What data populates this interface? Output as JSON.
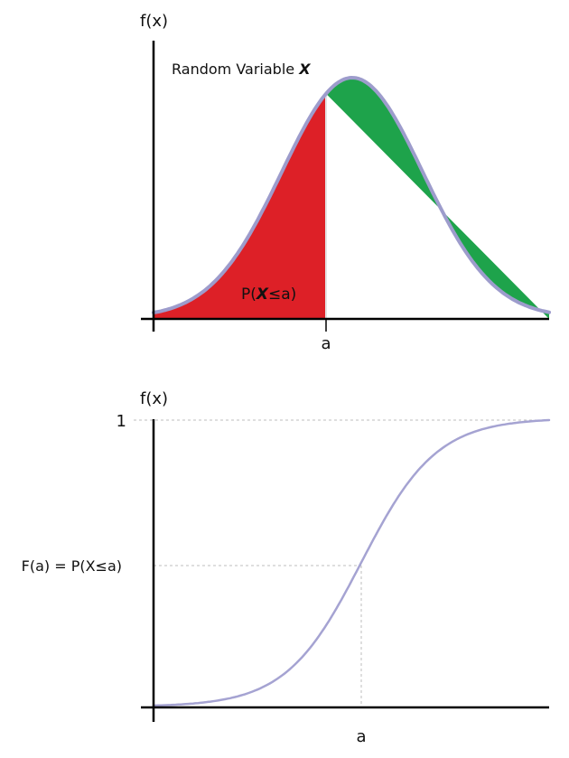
{
  "top_panel": {
    "y_axis_label": "f(x)",
    "curve_label_text": "Random Variable ",
    "curve_label_var": "X",
    "area_label_prefix": "P(",
    "area_label_var": "X",
    "area_label_suffix": "≤a)",
    "x_tick_label": "a",
    "colors": {
      "left_area": "#dd2027",
      "right_area": "#1ea34b",
      "curve": "#9d9ccc",
      "axis": "#000000",
      "divider": "#e3e3e3"
    }
  },
  "bottom_panel": {
    "y_axis_label": "f(x)",
    "y_tick_one": "1",
    "y_tick_fa": "F(a) = P(X≤a)",
    "x_tick_label": "a",
    "colors": {
      "curve": "#a5a3d2",
      "axis": "#000000",
      "guide": "#bdbdbd"
    }
  }
}
